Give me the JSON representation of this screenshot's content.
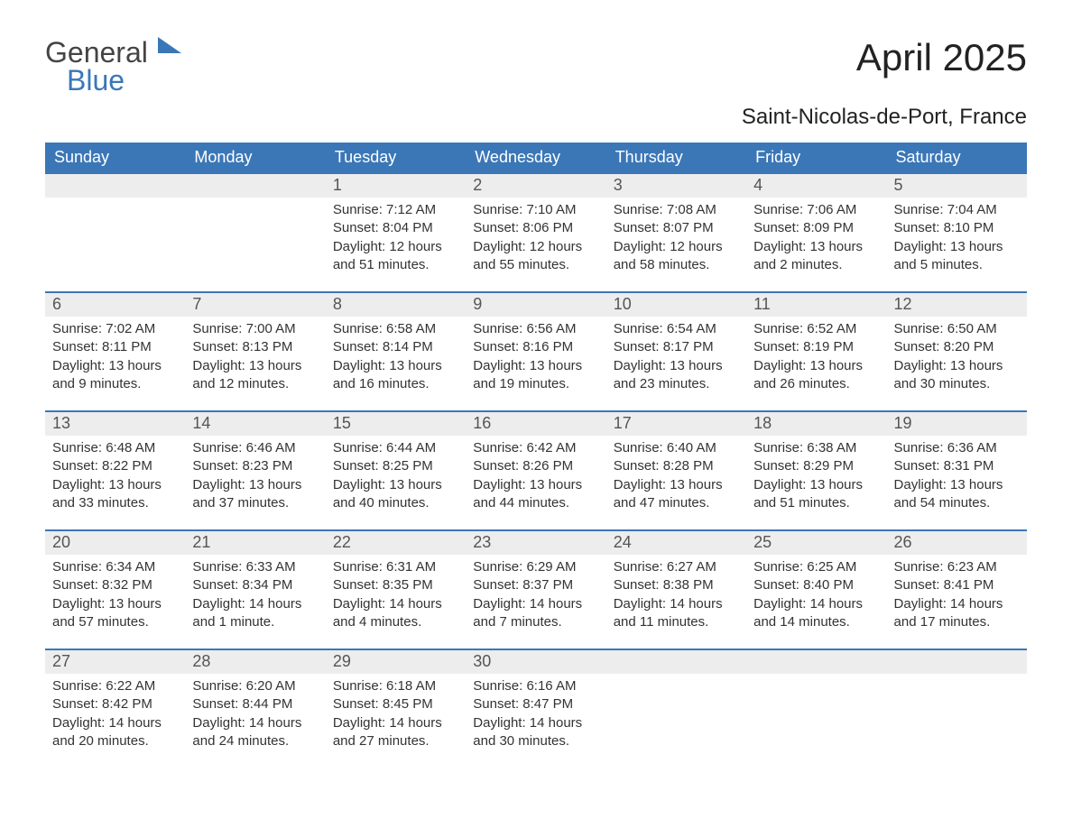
{
  "logo": {
    "text_general": "General",
    "text_blue": "Blue"
  },
  "title": "April 2025",
  "location": "Saint-Nicolas-de-Port, France",
  "colors": {
    "header_bg": "#3b77b7",
    "header_text": "#ffffff",
    "daybar_bg": "#ededed",
    "daybar_text": "#555555",
    "body_text": "#333333",
    "row_border": "#3b77b7",
    "page_bg": "#ffffff"
  },
  "typography": {
    "title_fontsize": 42,
    "location_fontsize": 24,
    "dayheader_fontsize": 18,
    "daynum_fontsize": 18,
    "body_fontsize": 15
  },
  "day_headers": [
    "Sunday",
    "Monday",
    "Tuesday",
    "Wednesday",
    "Thursday",
    "Friday",
    "Saturday"
  ],
  "weeks": [
    [
      null,
      null,
      {
        "n": "1",
        "sunrise": "Sunrise: 7:12 AM",
        "sunset": "Sunset: 8:04 PM",
        "daylight": "Daylight: 12 hours and 51 minutes."
      },
      {
        "n": "2",
        "sunrise": "Sunrise: 7:10 AM",
        "sunset": "Sunset: 8:06 PM",
        "daylight": "Daylight: 12 hours and 55 minutes."
      },
      {
        "n": "3",
        "sunrise": "Sunrise: 7:08 AM",
        "sunset": "Sunset: 8:07 PM",
        "daylight": "Daylight: 12 hours and 58 minutes."
      },
      {
        "n": "4",
        "sunrise": "Sunrise: 7:06 AM",
        "sunset": "Sunset: 8:09 PM",
        "daylight": "Daylight: 13 hours and 2 minutes."
      },
      {
        "n": "5",
        "sunrise": "Sunrise: 7:04 AM",
        "sunset": "Sunset: 8:10 PM",
        "daylight": "Daylight: 13 hours and 5 minutes."
      }
    ],
    [
      {
        "n": "6",
        "sunrise": "Sunrise: 7:02 AM",
        "sunset": "Sunset: 8:11 PM",
        "daylight": "Daylight: 13 hours and 9 minutes."
      },
      {
        "n": "7",
        "sunrise": "Sunrise: 7:00 AM",
        "sunset": "Sunset: 8:13 PM",
        "daylight": "Daylight: 13 hours and 12 minutes."
      },
      {
        "n": "8",
        "sunrise": "Sunrise: 6:58 AM",
        "sunset": "Sunset: 8:14 PM",
        "daylight": "Daylight: 13 hours and 16 minutes."
      },
      {
        "n": "9",
        "sunrise": "Sunrise: 6:56 AM",
        "sunset": "Sunset: 8:16 PM",
        "daylight": "Daylight: 13 hours and 19 minutes."
      },
      {
        "n": "10",
        "sunrise": "Sunrise: 6:54 AM",
        "sunset": "Sunset: 8:17 PM",
        "daylight": "Daylight: 13 hours and 23 minutes."
      },
      {
        "n": "11",
        "sunrise": "Sunrise: 6:52 AM",
        "sunset": "Sunset: 8:19 PM",
        "daylight": "Daylight: 13 hours and 26 minutes."
      },
      {
        "n": "12",
        "sunrise": "Sunrise: 6:50 AM",
        "sunset": "Sunset: 8:20 PM",
        "daylight": "Daylight: 13 hours and 30 minutes."
      }
    ],
    [
      {
        "n": "13",
        "sunrise": "Sunrise: 6:48 AM",
        "sunset": "Sunset: 8:22 PM",
        "daylight": "Daylight: 13 hours and 33 minutes."
      },
      {
        "n": "14",
        "sunrise": "Sunrise: 6:46 AM",
        "sunset": "Sunset: 8:23 PM",
        "daylight": "Daylight: 13 hours and 37 minutes."
      },
      {
        "n": "15",
        "sunrise": "Sunrise: 6:44 AM",
        "sunset": "Sunset: 8:25 PM",
        "daylight": "Daylight: 13 hours and 40 minutes."
      },
      {
        "n": "16",
        "sunrise": "Sunrise: 6:42 AM",
        "sunset": "Sunset: 8:26 PM",
        "daylight": "Daylight: 13 hours and 44 minutes."
      },
      {
        "n": "17",
        "sunrise": "Sunrise: 6:40 AM",
        "sunset": "Sunset: 8:28 PM",
        "daylight": "Daylight: 13 hours and 47 minutes."
      },
      {
        "n": "18",
        "sunrise": "Sunrise: 6:38 AM",
        "sunset": "Sunset: 8:29 PM",
        "daylight": "Daylight: 13 hours and 51 minutes."
      },
      {
        "n": "19",
        "sunrise": "Sunrise: 6:36 AM",
        "sunset": "Sunset: 8:31 PM",
        "daylight": "Daylight: 13 hours and 54 minutes."
      }
    ],
    [
      {
        "n": "20",
        "sunrise": "Sunrise: 6:34 AM",
        "sunset": "Sunset: 8:32 PM",
        "daylight": "Daylight: 13 hours and 57 minutes."
      },
      {
        "n": "21",
        "sunrise": "Sunrise: 6:33 AM",
        "sunset": "Sunset: 8:34 PM",
        "daylight": "Daylight: 14 hours and 1 minute."
      },
      {
        "n": "22",
        "sunrise": "Sunrise: 6:31 AM",
        "sunset": "Sunset: 8:35 PM",
        "daylight": "Daylight: 14 hours and 4 minutes."
      },
      {
        "n": "23",
        "sunrise": "Sunrise: 6:29 AM",
        "sunset": "Sunset: 8:37 PM",
        "daylight": "Daylight: 14 hours and 7 minutes."
      },
      {
        "n": "24",
        "sunrise": "Sunrise: 6:27 AM",
        "sunset": "Sunset: 8:38 PM",
        "daylight": "Daylight: 14 hours and 11 minutes."
      },
      {
        "n": "25",
        "sunrise": "Sunrise: 6:25 AM",
        "sunset": "Sunset: 8:40 PM",
        "daylight": "Daylight: 14 hours and 14 minutes."
      },
      {
        "n": "26",
        "sunrise": "Sunrise: 6:23 AM",
        "sunset": "Sunset: 8:41 PM",
        "daylight": "Daylight: 14 hours and 17 minutes."
      }
    ],
    [
      {
        "n": "27",
        "sunrise": "Sunrise: 6:22 AM",
        "sunset": "Sunset: 8:42 PM",
        "daylight": "Daylight: 14 hours and 20 minutes."
      },
      {
        "n": "28",
        "sunrise": "Sunrise: 6:20 AM",
        "sunset": "Sunset: 8:44 PM",
        "daylight": "Daylight: 14 hours and 24 minutes."
      },
      {
        "n": "29",
        "sunrise": "Sunrise: 6:18 AM",
        "sunset": "Sunset: 8:45 PM",
        "daylight": "Daylight: 14 hours and 27 minutes."
      },
      {
        "n": "30",
        "sunrise": "Sunrise: 6:16 AM",
        "sunset": "Sunset: 8:47 PM",
        "daylight": "Daylight: 14 hours and 30 minutes."
      },
      null,
      null,
      null
    ]
  ]
}
